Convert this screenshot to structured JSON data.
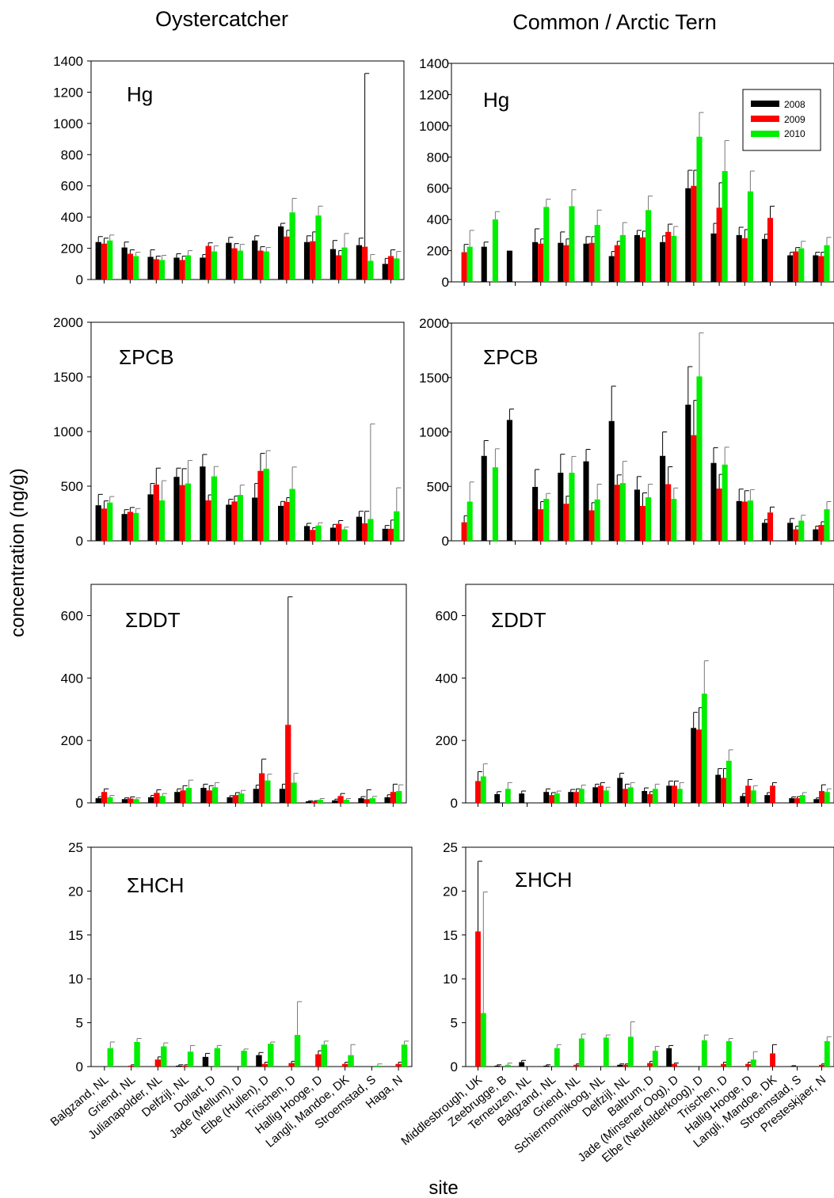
{
  "figure": {
    "col_titles": [
      "Oystercatcher",
      "Common / Arctic Tern"
    ],
    "ylabel": "concentration (ng/g)",
    "xlabel": "site"
  },
  "legend": {
    "years": [
      "2008",
      "2009",
      "2010"
    ]
  },
  "colors": {
    "2008": "#000000",
    "2009": "#ff0000",
    "2010": "#00ee00"
  },
  "chart_data": [
    {
      "type": "bar",
      "panel": "Hg",
      "species": "Oystercatcher",
      "ylim": [
        0,
        1400
      ],
      "yticks": [
        0,
        200,
        400,
        600,
        800,
        1000,
        1200,
        1400
      ],
      "categories": [
        "Balgzand, NL",
        "Griend, NL",
        "Julianapolder, NL",
        "Delfzijl, NL",
        "Dollart, D",
        "Jade (Mellum), D",
        "Elbe (Hullen), D",
        "Trischen, D",
        "Hallig Hooge, D",
        "Langli, Mandoe, DK",
        "Stroemstad, S",
        "Haga, N"
      ],
      "series": [
        {
          "name": "2008",
          "values": [
            240,
            205,
            145,
            140,
            140,
            235,
            250,
            340,
            240,
            195,
            220,
            100
          ],
          "errors": [
            35,
            35,
            45,
            25,
            20,
            35,
            30,
            20,
            40,
            55,
            45,
            35
          ]
        },
        {
          "name": "2009",
          "values": [
            230,
            165,
            130,
            125,
            215,
            200,
            185,
            275,
            245,
            155,
            210,
            150
          ],
          "errors": [
            35,
            25,
            20,
            25,
            20,
            30,
            25,
            40,
            60,
            30,
            1110,
            40
          ]
        },
        {
          "name": "2010",
          "values": [
            250,
            150,
            125,
            155,
            180,
            185,
            180,
            430,
            410,
            205,
            120,
            135
          ],
          "errors": [
            35,
            25,
            30,
            30,
            35,
            40,
            25,
            90,
            60,
            90,
            40,
            45
          ]
        }
      ]
    },
    {
      "type": "bar",
      "panel": "Hg",
      "species": "Common / Arctic Tern",
      "ylim": [
        0,
        1400
      ],
      "yticks": [
        0,
        200,
        400,
        600,
        800,
        1000,
        1200,
        1400
      ],
      "categories": [
        "Middlesbrough, UK",
        "Zeebrugge, B",
        "Terneuzen, NL",
        "Balgzand, NL",
        "Griend, NL",
        "Schiermonnikoog, NL",
        "Delfzijl, NL",
        "Baltrum, D",
        "Jade (Minsener Oog), D",
        "Elbe (Neufelderkoog), D",
        "Trischen, D",
        "Hallig Hooge, D",
        "Langli, Mandoe, DK",
        "Stroemstad, S",
        "Presteskjaer, N"
      ],
      "series": [
        {
          "name": "2008",
          "values": [
            null,
            225,
            200,
            255,
            250,
            245,
            165,
            300,
            255,
            600,
            310,
            300,
            275,
            170,
            170
          ],
          "errors": [
            0,
            30,
            0,
            85,
            70,
            45,
            30,
            30,
            40,
            115,
            65,
            50,
            30,
            20,
            20
          ]
        },
        {
          "name": "2009",
          "values": [
            190,
            null,
            null,
            245,
            235,
            250,
            235,
            285,
            320,
            615,
            475,
            280,
            410,
            195,
            165
          ],
          "errors": [
            50,
            0,
            0,
            30,
            40,
            40,
            25,
            40,
            50,
            100,
            160,
            55,
            75,
            25,
            25
          ]
        },
        {
          "name": "2010",
          "values": [
            225,
            400,
            null,
            480,
            485,
            365,
            300,
            460,
            295,
            930,
            710,
            580,
            null,
            215,
            235
          ],
          "errors": [
            105,
            50,
            0,
            50,
            105,
            95,
            80,
            90,
            60,
            155,
            195,
            130,
            0,
            45,
            50
          ]
        }
      ]
    },
    {
      "type": "bar",
      "panel": "ΣPCB",
      "species": "Oystercatcher",
      "ylim": [
        0,
        2000
      ],
      "yticks": [
        0,
        500,
        1000,
        1500,
        2000
      ],
      "categories": [
        "Balgzand, NL",
        "Griend, NL",
        "Julianapolder, NL",
        "Delfzijl, NL",
        "Dollart, D",
        "Jade (Mellum), D",
        "Elbe (Hullen), D",
        "Trischen, D",
        "Hallig Hooge, D",
        "Langli, Mandoe, DK",
        "Stroemstad, S",
        "Haga, N"
      ],
      "series": [
        {
          "name": "2008",
          "values": [
            325,
            245,
            425,
            585,
            680,
            330,
            395,
            320,
            135,
            120,
            220,
            110
          ],
          "errors": [
            100,
            40,
            100,
            80,
            110,
            50,
            130,
            40,
            25,
            30,
            50,
            30
          ]
        },
        {
          "name": "2009",
          "values": [
            295,
            265,
            515,
            510,
            370,
            360,
            640,
            355,
            100,
            155,
            160,
            110
          ],
          "errors": [
            70,
            40,
            150,
            150,
            50,
            50,
            160,
            40,
            20,
            30,
            110,
            80
          ]
        },
        {
          "name": "2010",
          "values": [
            350,
            255,
            370,
            525,
            590,
            420,
            660,
            475,
            140,
            105,
            200,
            270
          ],
          "errors": [
            55,
            40,
            180,
            210,
            90,
            90,
            165,
            200,
            25,
            20,
            870,
            215
          ]
        }
      ]
    },
    {
      "type": "bar",
      "panel": "ΣPCB",
      "species": "Common / Arctic Tern",
      "ylim": [
        0,
        2000
      ],
      "yticks": [
        0,
        500,
        1000,
        1500,
        2000
      ],
      "categories": [
        "Middlesbrough, UK",
        "Zeebrugge, B",
        "Terneuzen, NL",
        "Balgzand, NL",
        "Griend, NL",
        "Schiermonnikoog, NL",
        "Delfzijl, NL",
        "Baltrum, D",
        "Jade (Minsener Oog), D",
        "Elbe (Neufelderkoog), D",
        "Trischen, D",
        "Hallig Hooge, D",
        "Langli, Mandoe, DK",
        "Stroemstad, S",
        "Presteskjaer, N"
      ],
      "series": [
        {
          "name": "2008",
          "values": [
            null,
            780,
            1110,
            495,
            625,
            730,
            1100,
            470,
            780,
            1250,
            715,
            365,
            165,
            165,
            105
          ],
          "errors": [
            0,
            140,
            100,
            160,
            170,
            110,
            320,
            120,
            220,
            350,
            140,
            110,
            30,
            40,
            30
          ]
        },
        {
          "name": "2009",
          "values": [
            170,
            null,
            null,
            290,
            340,
            280,
            515,
            320,
            520,
            970,
            480,
            360,
            260,
            105,
            145
          ],
          "errors": [
            60,
            0,
            0,
            70,
            70,
            70,
            90,
            120,
            160,
            320,
            130,
            100,
            50,
            30,
            30
          ]
        },
        {
          "name": "2010",
          "values": [
            360,
            675,
            null,
            385,
            625,
            380,
            530,
            400,
            385,
            1510,
            700,
            370,
            null,
            185,
            290
          ],
          "errors": [
            180,
            170,
            0,
            50,
            150,
            140,
            200,
            120,
            100,
            400,
            160,
            100,
            0,
            50,
            70
          ]
        }
      ]
    },
    {
      "type": "bar",
      "panel": "ΣDDT",
      "species": "Oystercatcher",
      "ylim": [
        0,
        700
      ],
      "yticks": [
        0,
        200,
        400,
        600
      ],
      "categories": [
        "Balgzand, NL",
        "Griend, NL",
        "Julianapolder, NL",
        "Delfzijl, NL",
        "Dollart, D",
        "Jade (Mellum), D",
        "Elbe (Hullen), D",
        "Trischen, D",
        "Hallig Hooge, D",
        "Langli, Mandoe, DK",
        "Stroemstad, S",
        "Haga, N"
      ],
      "series": [
        {
          "name": "2008",
          "values": [
            15,
            12,
            18,
            35,
            48,
            18,
            45,
            45,
            5,
            8,
            15,
            18
          ],
          "errors": [
            5,
            4,
            6,
            10,
            12,
            5,
            12,
            15,
            2,
            4,
            5,
            8
          ]
        },
        {
          "name": "2009",
          "values": [
            35,
            14,
            32,
            40,
            40,
            25,
            95,
            250,
            5,
            22,
            12,
            35
          ],
          "errors": [
            10,
            5,
            10,
            15,
            15,
            8,
            45,
            410,
            2,
            8,
            30,
            25
          ]
        },
        {
          "name": "2010",
          "values": [
            18,
            12,
            22,
            48,
            50,
            30,
            72,
            65,
            10,
            10,
            15,
            38
          ],
          "errors": [
            6,
            4,
            8,
            25,
            15,
            10,
            20,
            30,
            4,
            4,
            6,
            20
          ]
        }
      ]
    },
    {
      "type": "bar",
      "panel": "ΣDDT",
      "species": "Common / Arctic Tern",
      "ylim": [
        0,
        700
      ],
      "yticks": [
        0,
        200,
        400,
        600
      ],
      "categories": [
        "Middlesbrough, UK",
        "Zeebrugge, B",
        "Terneuzen, NL",
        "Balgzand, NL",
        "Griend, NL",
        "Schiermonnikoog, NL",
        "Delfzijl, NL",
        "Baltrum, D",
        "Jade (Minsener Oog), D",
        "Elbe (Neufelderkoog), D",
        "Trischen, D",
        "Hallig Hooge, D",
        "Langli, Mandoe, DK",
        "Stroemstad, S",
        "Presteskjaer, N"
      ],
      "series": [
        {
          "name": "2008",
          "values": [
            null,
            28,
            30,
            35,
            35,
            50,
            80,
            38,
            55,
            240,
            90,
            22,
            25,
            15,
            12
          ],
          "errors": [
            0,
            8,
            8,
            10,
            8,
            10,
            15,
            10,
            15,
            50,
            20,
            8,
            8,
            4,
            4
          ]
        },
        {
          "name": "2009",
          "values": [
            70,
            null,
            null,
            25,
            35,
            55,
            45,
            28,
            55,
            235,
            80,
            55,
            55,
            15,
            38
          ],
          "errors": [
            30,
            0,
            0,
            8,
            10,
            10,
            15,
            8,
            15,
            70,
            30,
            20,
            10,
            5,
            20
          ]
        },
        {
          "name": "2010",
          "values": [
            85,
            45,
            null,
            30,
            45,
            40,
            50,
            45,
            45,
            350,
            135,
            40,
            null,
            25,
            35
          ],
          "errors": [
            40,
            20,
            0,
            8,
            12,
            10,
            15,
            15,
            20,
            105,
            35,
            15,
            0,
            8,
            10
          ]
        }
      ]
    },
    {
      "type": "bar",
      "panel": "ΣHCH",
      "species": "Oystercatcher",
      "ylim": [
        0,
        25
      ],
      "yticks": [
        0,
        5,
        10,
        15,
        20,
        25
      ],
      "categories": [
        "Balgzand, NL",
        "Griend, NL",
        "Julianapolder, NL",
        "Delfzijl, NL",
        "Dollart, D",
        "Jade (Mellum), D",
        "Elbe (Hullen), D",
        "Trischen, D",
        "Hallig Hooge, D",
        "Langli, Mandoe, DK",
        "Stroemstad, S",
        "Haga, N"
      ],
      "series": [
        {
          "name": "2008",
          "values": [
            0,
            0,
            0,
            0.1,
            1.1,
            0,
            1.3,
            0,
            0,
            0,
            0,
            0
          ],
          "errors": [
            0,
            0,
            0,
            0.1,
            0.4,
            0,
            0.3,
            0,
            0,
            0,
            0,
            0
          ]
        },
        {
          "name": "2009",
          "values": [
            0,
            0.1,
            0.8,
            0.1,
            0,
            0,
            0.3,
            0.4,
            1.4,
            0.3,
            0,
            0.3
          ],
          "errors": [
            0,
            0.1,
            0.3,
            0.1,
            0,
            0,
            0.2,
            0.2,
            0.4,
            0.2,
            0,
            0.2
          ]
        },
        {
          "name": "2010",
          "values": [
            2.1,
            2.8,
            2.3,
            1.7,
            2.1,
            1.8,
            2.6,
            3.6,
            2.5,
            1.3,
            0.1,
            2.5
          ],
          "errors": [
            0.7,
            0.4,
            0.4,
            0.7,
            0.3,
            0.2,
            0.2,
            3.8,
            0.4,
            1.2,
            0.2,
            0.4
          ]
        }
      ]
    },
    {
      "type": "bar",
      "panel": "ΣHCH",
      "species": "Common / Arctic Tern",
      "ylim": [
        0,
        25
      ],
      "yticks": [
        0,
        5,
        10,
        15,
        20,
        25
      ],
      "categories": [
        "Middlesbrough, UK",
        "Zeebrugge, B",
        "Terneuzen, NL",
        "Balgzand, NL",
        "Griend, NL",
        "Schiermonnikoog, NL",
        "Delfzijl, NL",
        "Baltrum, D",
        "Jade (Minsener Oog), D",
        "Elbe (Neufelderkoog), D",
        "Trischen, D",
        "Hallig Hooge, D",
        "Langli, Mandoe, DK",
        "Stroemstad, S",
        "Presteskjaer, N"
      ],
      "series": [
        {
          "name": "2008",
          "values": [
            null,
            0.1,
            0.5,
            0.1,
            0,
            0,
            0.2,
            0,
            2.1,
            0,
            0,
            0,
            0,
            0.05,
            0
          ],
          "errors": [
            0,
            0.1,
            0.2,
            0.1,
            0,
            0,
            0.1,
            0,
            0.3,
            0,
            0,
            0,
            0,
            0.05,
            0
          ]
        },
        {
          "name": "2009",
          "values": [
            15.4,
            null,
            null,
            0,
            0.2,
            0,
            0.2,
            0.4,
            0.3,
            0,
            0.3,
            0.3,
            1.5,
            0,
            0.2
          ],
          "errors": [
            8,
            0,
            0,
            0,
            0.1,
            0,
            0.1,
            0.2,
            0.1,
            0,
            0.2,
            0.2,
            1.0,
            0,
            0.1
          ]
        },
        {
          "name": "2010",
          "values": [
            6.1,
            0.2,
            null,
            2.1,
            3.2,
            3.3,
            3.4,
            1.8,
            0,
            3.0,
            2.9,
            0.8,
            null,
            0,
            2.9
          ],
          "errors": [
            13.8,
            0.2,
            0,
            0.4,
            0.5,
            0.3,
            1.7,
            0.5,
            0,
            0.6,
            0.3,
            0.9,
            0,
            0,
            0.5
          ]
        }
      ]
    }
  ]
}
